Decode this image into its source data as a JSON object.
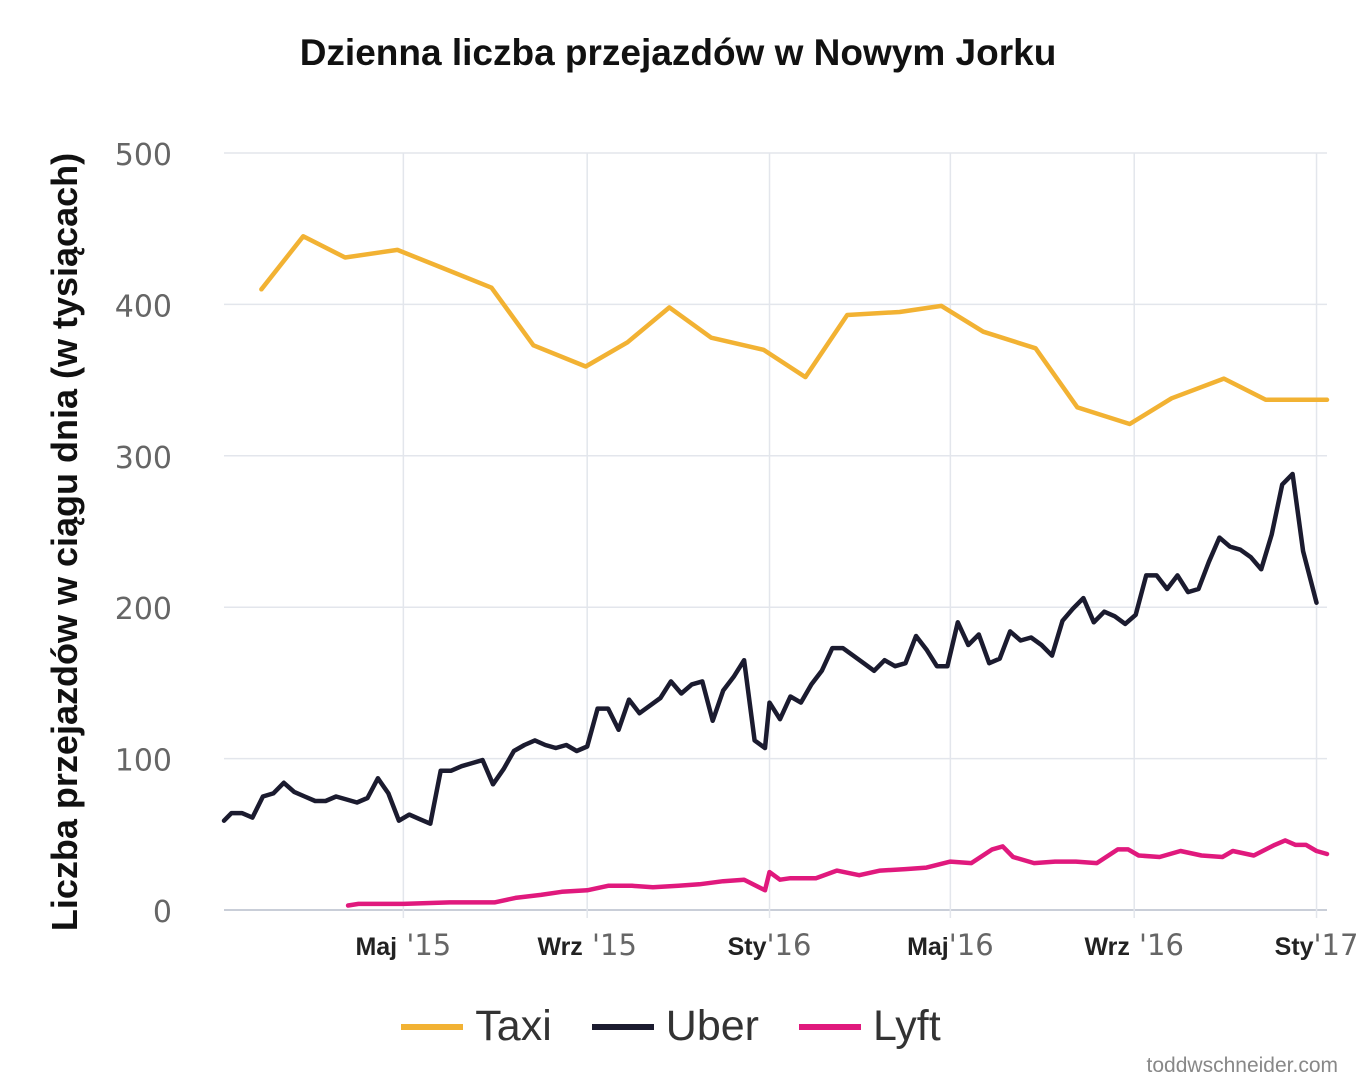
{
  "chart_data": {
    "type": "line",
    "title": "Dzienna liczba przejazdów w Nowym Jorku",
    "ylabel": "Liczba przejazdów w ciągu dnia (w tysiącach)",
    "xlabel": "",
    "ylim": [
      0,
      500
    ],
    "yticks": [
      0,
      100,
      200,
      300,
      400,
      500
    ],
    "xlim": [
      "2015-01-01",
      "2017-01-08"
    ],
    "xticks": [
      {
        "date": "2015-05-01",
        "bold": "Maj",
        "rest": " '15"
      },
      {
        "date": "2015-09-01",
        "bold": "Wrz",
        "rest": " '15"
      },
      {
        "date": "2016-01-01",
        "bold": "Sty",
        "rest": "'16"
      },
      {
        "date": "2016-05-01",
        "bold": "Maj",
        "rest": "'16"
      },
      {
        "date": "2016-09-01",
        "bold": "Wrz",
        "rest": " '16"
      },
      {
        "date": "2017-01-01",
        "bold": "Sty",
        "rest": "'17"
      }
    ],
    "grid": true,
    "legend_position": "bottom",
    "series": [
      {
        "name": "Taxi",
        "color": "#F2B233",
        "points": [
          [
            "2015-01-26",
            410
          ],
          [
            "2015-02-23",
            445
          ],
          [
            "2015-03-23",
            431
          ],
          [
            "2015-04-27",
            436
          ],
          [
            "2015-05-25",
            425
          ],
          [
            "2015-06-29",
            411
          ],
          [
            "2015-07-27",
            373
          ],
          [
            "2015-08-31",
            359
          ],
          [
            "2015-09-28",
            375
          ],
          [
            "2015-10-26",
            398
          ],
          [
            "2015-11-23",
            378
          ],
          [
            "2015-12-28",
            370
          ],
          [
            "2016-01-25",
            352
          ],
          [
            "2016-02-22",
            393
          ],
          [
            "2016-03-28",
            395
          ],
          [
            "2016-04-25",
            399
          ],
          [
            "2016-05-23",
            382
          ],
          [
            "2016-06-27",
            371
          ],
          [
            "2016-07-25",
            332
          ],
          [
            "2016-08-29",
            321
          ],
          [
            "2016-09-26",
            338
          ],
          [
            "2016-10-31",
            351
          ],
          [
            "2016-11-28",
            337
          ],
          [
            "2016-12-26",
            337
          ],
          [
            "2017-01-08",
            337
          ]
        ]
      },
      {
        "name": "Uber",
        "color": "#1B1B2F",
        "points": [
          [
            "2015-01-01",
            59
          ],
          [
            "2015-01-06",
            64
          ],
          [
            "2015-01-13",
            64
          ],
          [
            "2015-01-20",
            61
          ],
          [
            "2015-01-27",
            75
          ],
          [
            "2015-02-03",
            77
          ],
          [
            "2015-02-10",
            84
          ],
          [
            "2015-02-17",
            78
          ],
          [
            "2015-02-24",
            75
          ],
          [
            "2015-03-03",
            72
          ],
          [
            "2015-03-10",
            72
          ],
          [
            "2015-03-17",
            75
          ],
          [
            "2015-03-24",
            73
          ],
          [
            "2015-03-31",
            71
          ],
          [
            "2015-04-07",
            74
          ],
          [
            "2015-04-14",
            87
          ],
          [
            "2015-04-21",
            77
          ],
          [
            "2015-04-28",
            59
          ],
          [
            "2015-05-05",
            63
          ],
          [
            "2015-05-12",
            60
          ],
          [
            "2015-05-19",
            57
          ],
          [
            "2015-05-26",
            92
          ],
          [
            "2015-06-02",
            92
          ],
          [
            "2015-06-09",
            95
          ],
          [
            "2015-06-16",
            97
          ],
          [
            "2015-06-23",
            99
          ],
          [
            "2015-06-30",
            83
          ],
          [
            "2015-07-07",
            93
          ],
          [
            "2015-07-14",
            105
          ],
          [
            "2015-07-21",
            109
          ],
          [
            "2015-07-28",
            112
          ],
          [
            "2015-08-04",
            109
          ],
          [
            "2015-08-11",
            107
          ],
          [
            "2015-08-18",
            109
          ],
          [
            "2015-08-25",
            105
          ],
          [
            "2015-09-01",
            108
          ],
          [
            "2015-09-08",
            133
          ],
          [
            "2015-09-15",
            133
          ],
          [
            "2015-09-22",
            119
          ],
          [
            "2015-09-29",
            139
          ],
          [
            "2015-10-06",
            130
          ],
          [
            "2015-10-13",
            135
          ],
          [
            "2015-10-20",
            140
          ],
          [
            "2015-10-27",
            151
          ],
          [
            "2015-11-03",
            143
          ],
          [
            "2015-11-10",
            149
          ],
          [
            "2015-11-17",
            151
          ],
          [
            "2015-11-24",
            125
          ],
          [
            "2015-12-01",
            145
          ],
          [
            "2015-12-08",
            154
          ],
          [
            "2015-12-15",
            165
          ],
          [
            "2015-12-22",
            112
          ],
          [
            "2015-12-29",
            107
          ],
          [
            "2016-01-01",
            137
          ],
          [
            "2016-01-08",
            126
          ],
          [
            "2016-01-15",
            141
          ],
          [
            "2016-01-22",
            137
          ],
          [
            "2016-01-29",
            149
          ],
          [
            "2016-02-05",
            158
          ],
          [
            "2016-02-12",
            173
          ],
          [
            "2016-02-19",
            173
          ],
          [
            "2016-02-26",
            168
          ],
          [
            "2016-03-04",
            163
          ],
          [
            "2016-03-11",
            158
          ],
          [
            "2016-03-18",
            165
          ],
          [
            "2016-03-25",
            161
          ],
          [
            "2016-04-01",
            163
          ],
          [
            "2016-04-08",
            181
          ],
          [
            "2016-04-15",
            172
          ],
          [
            "2016-04-22",
            161
          ],
          [
            "2016-04-29",
            161
          ],
          [
            "2016-05-06",
            190
          ],
          [
            "2016-05-13",
            175
          ],
          [
            "2016-05-20",
            182
          ],
          [
            "2016-05-27",
            163
          ],
          [
            "2016-06-03",
            166
          ],
          [
            "2016-06-10",
            184
          ],
          [
            "2016-06-17",
            178
          ],
          [
            "2016-06-24",
            180
          ],
          [
            "2016-07-01",
            175
          ],
          [
            "2016-07-08",
            168
          ],
          [
            "2016-07-15",
            191
          ],
          [
            "2016-07-22",
            199
          ],
          [
            "2016-07-29",
            206
          ],
          [
            "2016-08-05",
            190
          ],
          [
            "2016-08-12",
            197
          ],
          [
            "2016-08-19",
            194
          ],
          [
            "2016-08-26",
            189
          ],
          [
            "2016-09-02",
            195
          ],
          [
            "2016-09-09",
            221
          ],
          [
            "2016-09-16",
            221
          ],
          [
            "2016-09-23",
            212
          ],
          [
            "2016-09-30",
            221
          ],
          [
            "2016-10-07",
            210
          ],
          [
            "2016-10-14",
            212
          ],
          [
            "2016-10-21",
            230
          ],
          [
            "2016-10-28",
            246
          ],
          [
            "2016-11-04",
            240
          ],
          [
            "2016-11-11",
            238
          ],
          [
            "2016-11-18",
            233
          ],
          [
            "2016-11-25",
            225
          ],
          [
            "2016-12-02",
            248
          ],
          [
            "2016-12-09",
            281
          ],
          [
            "2016-12-16",
            288
          ],
          [
            "2016-12-23",
            237
          ],
          [
            "2017-01-01",
            203
          ]
        ]
      },
      {
        "name": "Lyft",
        "color": "#E0197D",
        "points": [
          [
            "2015-03-25",
            3
          ],
          [
            "2015-04-01",
            4
          ],
          [
            "2015-05-01",
            4
          ],
          [
            "2015-06-01",
            5
          ],
          [
            "2015-07-01",
            5
          ],
          [
            "2015-07-15",
            8
          ],
          [
            "2015-08-01",
            10
          ],
          [
            "2015-08-15",
            12
          ],
          [
            "2015-09-01",
            13
          ],
          [
            "2015-09-15",
            16
          ],
          [
            "2015-10-01",
            16
          ],
          [
            "2015-10-15",
            15
          ],
          [
            "2015-11-01",
            16
          ],
          [
            "2015-11-15",
            17
          ],
          [
            "2015-12-01",
            19
          ],
          [
            "2015-12-15",
            20
          ],
          [
            "2015-12-29",
            13
          ],
          [
            "2016-01-01",
            25
          ],
          [
            "2016-01-08",
            20
          ],
          [
            "2016-01-15",
            21
          ],
          [
            "2016-02-01",
            21
          ],
          [
            "2016-02-15",
            26
          ],
          [
            "2016-03-01",
            23
          ],
          [
            "2016-03-15",
            26
          ],
          [
            "2016-04-01",
            27
          ],
          [
            "2016-04-15",
            28
          ],
          [
            "2016-05-01",
            32
          ],
          [
            "2016-05-15",
            31
          ],
          [
            "2016-05-29",
            40
          ],
          [
            "2016-06-05",
            42
          ],
          [
            "2016-06-12",
            35
          ],
          [
            "2016-06-26",
            31
          ],
          [
            "2016-07-10",
            32
          ],
          [
            "2016-07-24",
            32
          ],
          [
            "2016-08-07",
            31
          ],
          [
            "2016-08-21",
            40
          ],
          [
            "2016-08-28",
            40
          ],
          [
            "2016-09-04",
            36
          ],
          [
            "2016-09-18",
            35
          ],
          [
            "2016-10-02",
            39
          ],
          [
            "2016-10-16",
            36
          ],
          [
            "2016-10-30",
            35
          ],
          [
            "2016-11-06",
            39
          ],
          [
            "2016-11-20",
            36
          ],
          [
            "2016-12-04",
            43
          ],
          [
            "2016-12-11",
            46
          ],
          [
            "2016-12-18",
            43
          ],
          [
            "2016-12-25",
            43
          ],
          [
            "2017-01-01",
            39
          ],
          [
            "2017-01-08",
            37
          ]
        ]
      }
    ]
  },
  "credit": "toddwschneider.com"
}
